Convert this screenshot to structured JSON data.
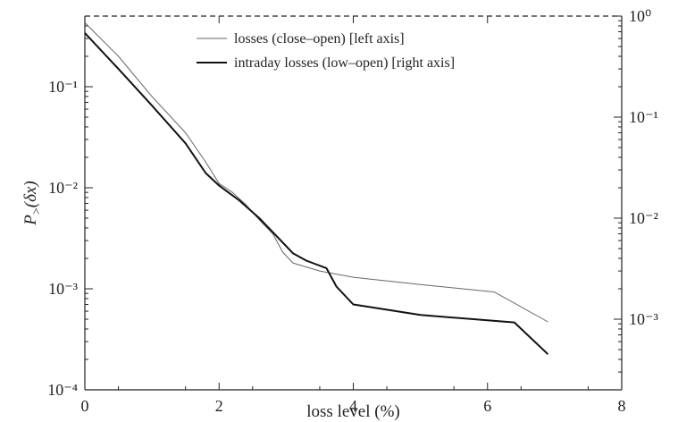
{
  "chart_data": {
    "type": "line",
    "xlabel": "loss level (%)",
    "ylabel": "P_>(δx)",
    "xlim": [
      0,
      8
    ],
    "x_ticks": [
      0,
      2,
      4,
      6,
      8
    ],
    "y_left": {
      "scale": "log",
      "lim": [
        0.0001,
        0.5
      ],
      "ticks": [
        {
          "value": 0.1,
          "label": "10⁻¹"
        },
        {
          "value": 0.01,
          "label": "10⁻²"
        },
        {
          "value": 0.001,
          "label": "10⁻³"
        },
        {
          "value": 0.0001,
          "label": "10⁻⁴"
        }
      ]
    },
    "y_right": {
      "scale": "log",
      "lim": [
        0.0002,
        1
      ],
      "ticks": [
        {
          "value": 1,
          "label": "10⁰"
        },
        {
          "value": 0.1,
          "label": "10⁻¹"
        },
        {
          "value": 0.01,
          "label": "10⁻²"
        },
        {
          "value": 0.001,
          "label": "10⁻³"
        }
      ]
    },
    "legend_position": "top-center",
    "series": [
      {
        "name": "losses (close–open) [left axis]",
        "axis": "left",
        "color": "#666666",
        "points": [
          [
            0,
            0.43
          ],
          [
            0.5,
            0.2
          ],
          [
            1,
            0.08
          ],
          [
            1.5,
            0.035
          ],
          [
            1.8,
            0.018
          ],
          [
            2.0,
            0.011
          ],
          [
            2.2,
            0.009
          ],
          [
            2.4,
            0.0068
          ],
          [
            2.6,
            0.0048
          ],
          [
            2.8,
            0.0035
          ],
          [
            2.95,
            0.0023
          ],
          [
            3.1,
            0.0018
          ],
          [
            3.5,
            0.0015
          ],
          [
            4.0,
            0.0013
          ],
          [
            5.0,
            0.0011
          ],
          [
            6.1,
            0.00093
          ],
          [
            6.9,
            0.00047
          ]
        ]
      },
      {
        "name": "intraday losses (low–open) [right axis]",
        "axis": "right",
        "color": "#111111",
        "points": [
          [
            0,
            0.68
          ],
          [
            0.5,
            0.3
          ],
          [
            1,
            0.13
          ],
          [
            1.5,
            0.055
          ],
          [
            1.8,
            0.028
          ],
          [
            2.0,
            0.021
          ],
          [
            2.3,
            0.015
          ],
          [
            2.6,
            0.01
          ],
          [
            2.9,
            0.0062
          ],
          [
            3.1,
            0.0045
          ],
          [
            3.3,
            0.0038
          ],
          [
            3.6,
            0.0032
          ],
          [
            3.75,
            0.0021
          ],
          [
            4.0,
            0.0014
          ],
          [
            5.0,
            0.0011
          ],
          [
            6.4,
            0.00093
          ],
          [
            6.9,
            0.00045
          ]
        ]
      }
    ]
  }
}
